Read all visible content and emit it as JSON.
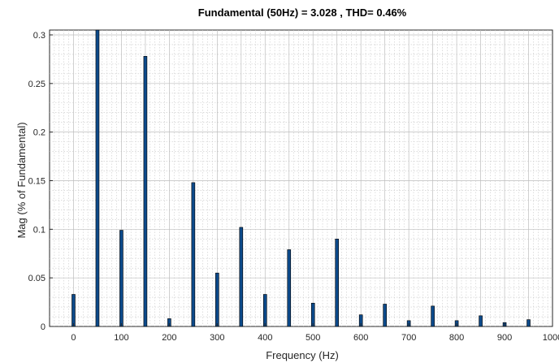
{
  "chart_data": {
    "type": "bar",
    "title": "Fundamental (50Hz) = 3.028 , THD= 0.46%",
    "xlabel": "Frequency (Hz)",
    "ylabel": "Mag (% of Fundamental)",
    "xlim": [
      -50,
      1000
    ],
    "ylim": [
      0,
      0.305
    ],
    "grid": true,
    "x_ticks": [
      0,
      100,
      200,
      300,
      400,
      500,
      600,
      700,
      800,
      900,
      1000
    ],
    "x_tick_labels": [
      "0",
      "100",
      "200",
      "300",
      "400",
      "500",
      "600",
      "700",
      "800",
      "900",
      "1000"
    ],
    "y_ticks": [
      0,
      0.05,
      0.1,
      0.15,
      0.2,
      0.25,
      0.3
    ],
    "y_tick_labels": [
      "0",
      "0.05",
      "0.1",
      "0.15",
      "0.2",
      "0.25",
      "0.3"
    ],
    "x": [
      0,
      50,
      100,
      150,
      200,
      250,
      300,
      350,
      400,
      450,
      500,
      550,
      600,
      650,
      700,
      750,
      800,
      850,
      900,
      950
    ],
    "values": [
      0.033,
      0.305,
      0.099,
      0.278,
      0.008,
      0.148,
      0.055,
      0.102,
      0.033,
      0.079,
      0.024,
      0.09,
      0.012,
      0.023,
      0.006,
      0.021,
      0.006,
      0.011,
      0.004,
      0.007
    ],
    "bar_color": "#0d4a8a"
  }
}
